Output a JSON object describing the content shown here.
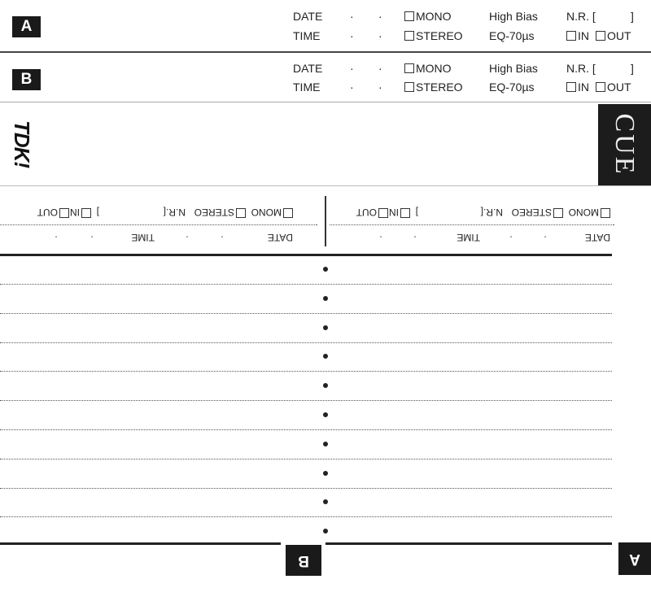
{
  "side_a": {
    "badge": "A",
    "date": "DATE",
    "time": "TIME",
    "sep": "·",
    "mono": "MONO",
    "stereo": "STEREO",
    "bias": "High Bias",
    "eq": "EQ-70µs",
    "nr": "N.R. [",
    "nr_close": "]",
    "in": "IN",
    "out": "OUT"
  },
  "side_b": {
    "badge": "B",
    "date": "DATE",
    "time": "TIME",
    "sep": "·",
    "mono": "MONO",
    "stereo": "STEREO",
    "bias": "High Bias",
    "eq": "EQ-70µs",
    "nr": "N.R. [",
    "nr_close": "]",
    "in": "IN",
    "out": "OUT"
  },
  "spine": {
    "logo": "TDK!",
    "cue": "CUE"
  },
  "inner_left": {
    "date": "DATE",
    "time": "TIME",
    "sep": "·",
    "mono": "MONO",
    "stereo": "STEREO",
    "nr": "N.R.[",
    "nr_close": "]",
    "in": "IN",
    "out": "OUT"
  },
  "inner_right": {
    "date": "DATE",
    "time": "TIME",
    "sep": "·",
    "mono": "MONO",
    "stereo": "STEREO",
    "nr": "N.R.[",
    "nr_close": "]",
    "in": "IN",
    "out": "OUT"
  },
  "bottom": {
    "badge_b": "B",
    "badge_a": "A"
  }
}
